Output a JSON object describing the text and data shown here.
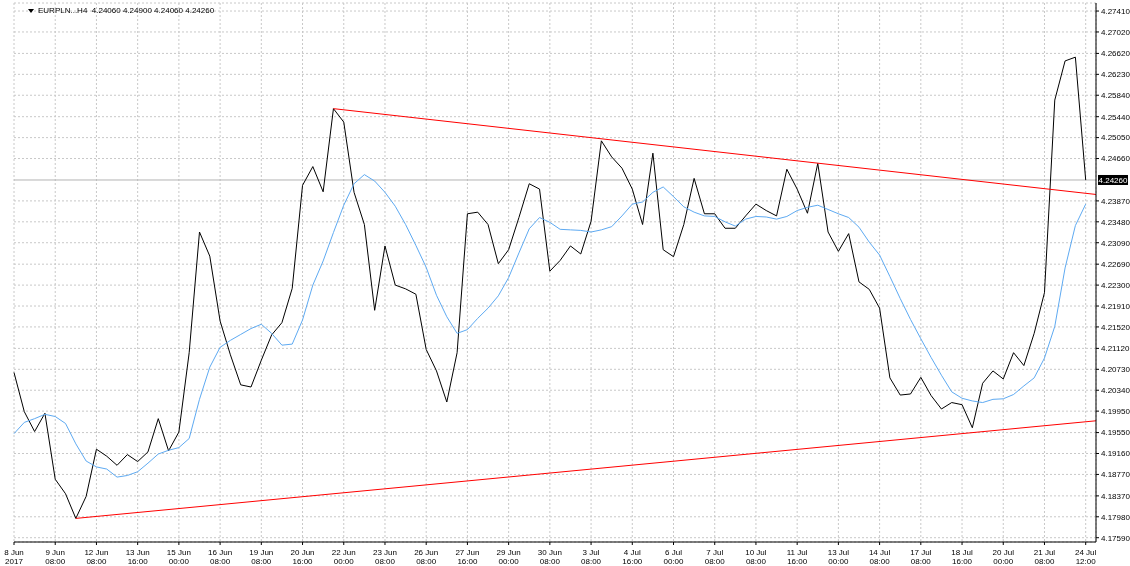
{
  "chart_data": {
    "type": "line",
    "title": "EURPLN...H4  4.24060 4.24900 4.24060 4.24260",
    "categories": [
      "8 Jun 2017",
      null,
      null,
      null,
      "9 Jun 08:00",
      null,
      null,
      null,
      "12 Jun 08:00",
      null,
      null,
      null,
      "13 Jun 16:00",
      null,
      null,
      null,
      "15 Jun 00:00",
      null,
      null,
      null,
      "16 Jun 08:00",
      null,
      null,
      null,
      "19 Jun 08:00",
      null,
      null,
      null,
      "20 Jun 16:00",
      null,
      null,
      null,
      "22 Jun 00:00",
      null,
      null,
      null,
      "23 Jun 08:00",
      null,
      null,
      null,
      "26 Jun 08:00",
      null,
      null,
      null,
      "27 Jun 16:00",
      null,
      null,
      null,
      "29 Jun 00:00",
      null,
      null,
      null,
      "30 Jun 08:00",
      null,
      null,
      null,
      "3 Jul 08:00",
      null,
      null,
      null,
      "4 Jul 16:00",
      null,
      null,
      null,
      "6 Jul 00:00",
      null,
      null,
      null,
      "7 Jul 08:00",
      null,
      null,
      null,
      "10 Jul 08:00",
      null,
      null,
      null,
      "11 Jul 16:00",
      null,
      null,
      null,
      "13 Jul 00:00",
      null,
      null,
      null,
      "14 Jul 08:00",
      null,
      null,
      null,
      "17 Jul 08:00",
      null,
      null,
      null,
      "18 Jul 16:00",
      null,
      null,
      null,
      "20 Jul 00:00",
      null,
      null,
      null,
      "21 Jul 08:00",
      null,
      null,
      null,
      "24 Jul 12:00",
      null
    ],
    "series": [
      {
        "color": "#000000",
        "values": [
          4.2067,
          4.1994,
          4.1957,
          4.1991,
          4.1868,
          4.1841,
          4.1795,
          4.1836,
          4.1924,
          4.1911,
          4.1894,
          4.1914,
          4.1901,
          4.1919,
          4.1981,
          4.1921,
          4.1956,
          4.2104,
          4.2329,
          4.2284,
          4.2163,
          4.21,
          4.2044,
          4.204,
          4.209,
          4.2137,
          4.216,
          4.2224,
          4.2416,
          4.2451,
          4.2404,
          4.2559,
          4.2534,
          4.2403,
          4.2343,
          4.2183,
          4.2303,
          4.223,
          4.2223,
          4.2213,
          4.211,
          4.207,
          4.2012,
          4.2104,
          4.2363,
          4.2366,
          4.2343,
          4.227,
          4.2296,
          4.2356,
          4.2419,
          4.2409,
          4.2256,
          4.2276,
          4.2303,
          4.2288,
          4.2349,
          4.2499,
          4.2469,
          4.2448,
          4.2409,
          4.2343,
          4.2476,
          4.2296,
          4.2283,
          4.2343,
          4.2429,
          4.2363,
          4.2363,
          4.2336,
          4.2336,
          4.2359,
          4.2381,
          4.2369,
          4.2359,
          4.2446,
          4.2409,
          4.2364,
          4.2457,
          4.2329,
          4.2293,
          4.2326,
          4.2236,
          4.2222,
          4.2187,
          4.2057,
          4.2025,
          4.2027,
          4.2058,
          4.2024,
          4.1999,
          4.2011,
          4.2007,
          4.1964,
          4.2047,
          4.207,
          4.2055,
          4.2104,
          4.208,
          4.214,
          4.2216,
          4.2575,
          4.2648,
          4.2655,
          4.2426,
          null
        ]
      },
      {
        "color": "#5eaaf2",
        "values": [
          4.1953,
          4.1974,
          4.1981,
          4.1989,
          4.1985,
          4.1972,
          4.1934,
          4.1902,
          4.1891,
          4.1887,
          4.1872,
          4.1875,
          4.1882,
          4.1898,
          4.1915,
          4.1922,
          4.1927,
          4.1944,
          4.2017,
          4.2077,
          4.2114,
          4.2127,
          4.2138,
          4.2149,
          4.2157,
          4.214,
          4.2118,
          4.212,
          4.2165,
          4.223,
          4.2275,
          4.2328,
          4.2379,
          4.2419,
          4.2436,
          4.2424,
          4.2403,
          4.2377,
          4.2343,
          4.2304,
          4.2263,
          4.2211,
          4.2171,
          4.214,
          4.2147,
          4.2168,
          4.2187,
          4.221,
          4.2244,
          4.229,
          4.2335,
          4.2356,
          4.2347,
          4.2334,
          4.2333,
          4.2332,
          4.2329,
          4.2333,
          4.2339,
          4.2359,
          4.2381,
          4.2385,
          4.2403,
          4.2413,
          4.2395,
          4.2376,
          4.2366,
          4.2359,
          4.2358,
          4.2348,
          4.234,
          4.2353,
          4.2358,
          4.2357,
          4.2353,
          4.2358,
          4.2369,
          4.2375,
          4.2379,
          4.2371,
          4.2363,
          4.2356,
          4.2338,
          4.231,
          4.2286,
          4.2246,
          4.2205,
          4.2166,
          4.213,
          4.2095,
          4.2062,
          4.2031,
          4.2019,
          4.2014,
          4.2011,
          4.2017,
          4.2018,
          4.2026,
          4.2042,
          4.2057,
          4.2094,
          4.2153,
          4.2262,
          4.2341,
          4.2381,
          null
        ]
      },
      {
        "type": "line",
        "color": "#ff0000",
        "values": [
          null,
          null,
          null,
          null,
          null,
          null,
          null,
          null,
          null,
          null,
          null,
          null,
          null,
          null,
          null,
          null,
          null,
          null,
          null,
          null,
          null,
          null,
          null,
          null,
          null,
          null,
          null,
          null,
          null,
          null,
          null,
          4.2559,
          null,
          null,
          null,
          null,
          null,
          null,
          null,
          null,
          null,
          null,
          null,
          null,
          null,
          null,
          null,
          null,
          null,
          null,
          null,
          null,
          null,
          null,
          null,
          null,
          null,
          null,
          null,
          null,
          null,
          null,
          null,
          null,
          null,
          null,
          null,
          null,
          null,
          null,
          null,
          null,
          null,
          null,
          null,
          null,
          null,
          null,
          null,
          null,
          null,
          null,
          null,
          null,
          null,
          null,
          null,
          null,
          null,
          null,
          null,
          null,
          null,
          null,
          null,
          null,
          null,
          null,
          null,
          null,
          null,
          null,
          null,
          null,
          null,
          4.2399
        ]
      },
      {
        "type": "line",
        "color": "#ff0000",
        "values": [
          null,
          null,
          null,
          null,
          null,
          null,
          4.1795,
          null,
          null,
          null,
          null,
          null,
          null,
          null,
          null,
          null,
          null,
          null,
          null,
          null,
          null,
          null,
          null,
          null,
          null,
          null,
          null,
          null,
          null,
          null,
          null,
          null,
          null,
          null,
          null,
          null,
          null,
          null,
          null,
          null,
          null,
          null,
          null,
          null,
          null,
          null,
          null,
          null,
          null,
          null,
          null,
          null,
          null,
          null,
          null,
          null,
          null,
          null,
          null,
          null,
          null,
          null,
          null,
          null,
          null,
          null,
          null,
          null,
          null,
          null,
          null,
          null,
          null,
          null,
          null,
          null,
          null,
          null,
          null,
          null,
          null,
          null,
          null,
          null,
          null,
          null,
          null,
          null,
          null,
          null,
          null,
          null,
          null,
          null,
          null,
          null,
          null,
          null,
          null,
          null,
          null,
          null,
          null,
          null,
          null,
          4.1977
        ]
      }
    ],
    "ylim": [
      4.1751,
      4.2756
    ],
    "yticks": [
      {
        "value": 4.1759,
        "label": "4.17590"
      },
      {
        "value": 4.1798,
        "label": "4.17980"
      },
      {
        "value": 4.1837,
        "label": "4.18370"
      },
      {
        "value": 4.1877,
        "label": "4.18770"
      },
      {
        "value": 4.1916,
        "label": "4.19160"
      },
      {
        "value": 4.1955,
        "label": "4.19550"
      },
      {
        "value": 4.1995,
        "label": "4.19950"
      },
      {
        "value": 4.2034,
        "label": "4.20340"
      },
      {
        "value": 4.2073,
        "label": "4.20730"
      },
      {
        "value": 4.2112,
        "label": "4.21120"
      },
      {
        "value": 4.2152,
        "label": "4.21520"
      },
      {
        "value": 4.2191,
        "label": "4.21910"
      },
      {
        "value": 4.223,
        "label": "4.22300"
      },
      {
        "value": 4.2269,
        "label": "4.22690"
      },
      {
        "value": 4.2309,
        "label": "4.23090"
      },
      {
        "value": 4.2348,
        "label": "4.23480"
      },
      {
        "value": 4.2387,
        "label": "4.23870"
      },
      {
        "value": 4.2466,
        "label": "4.24660"
      },
      {
        "value": 4.2505,
        "label": "4.25050"
      },
      {
        "value": 4.2544,
        "label": "4.25440"
      },
      {
        "value": 4.2584,
        "label": "4.25840"
      },
      {
        "value": 4.2623,
        "label": "4.26230"
      },
      {
        "value": 4.2662,
        "label": "4.26620"
      },
      {
        "value": 4.2702,
        "label": "4.27020"
      },
      {
        "value": 4.2741,
        "label": "4.27410"
      }
    ],
    "ref_lines": [
      {
        "axis": "y",
        "value": 4.2426,
        "label": "4.24260",
        "color": "#b4b4b4"
      }
    ],
    "grid": true
  }
}
